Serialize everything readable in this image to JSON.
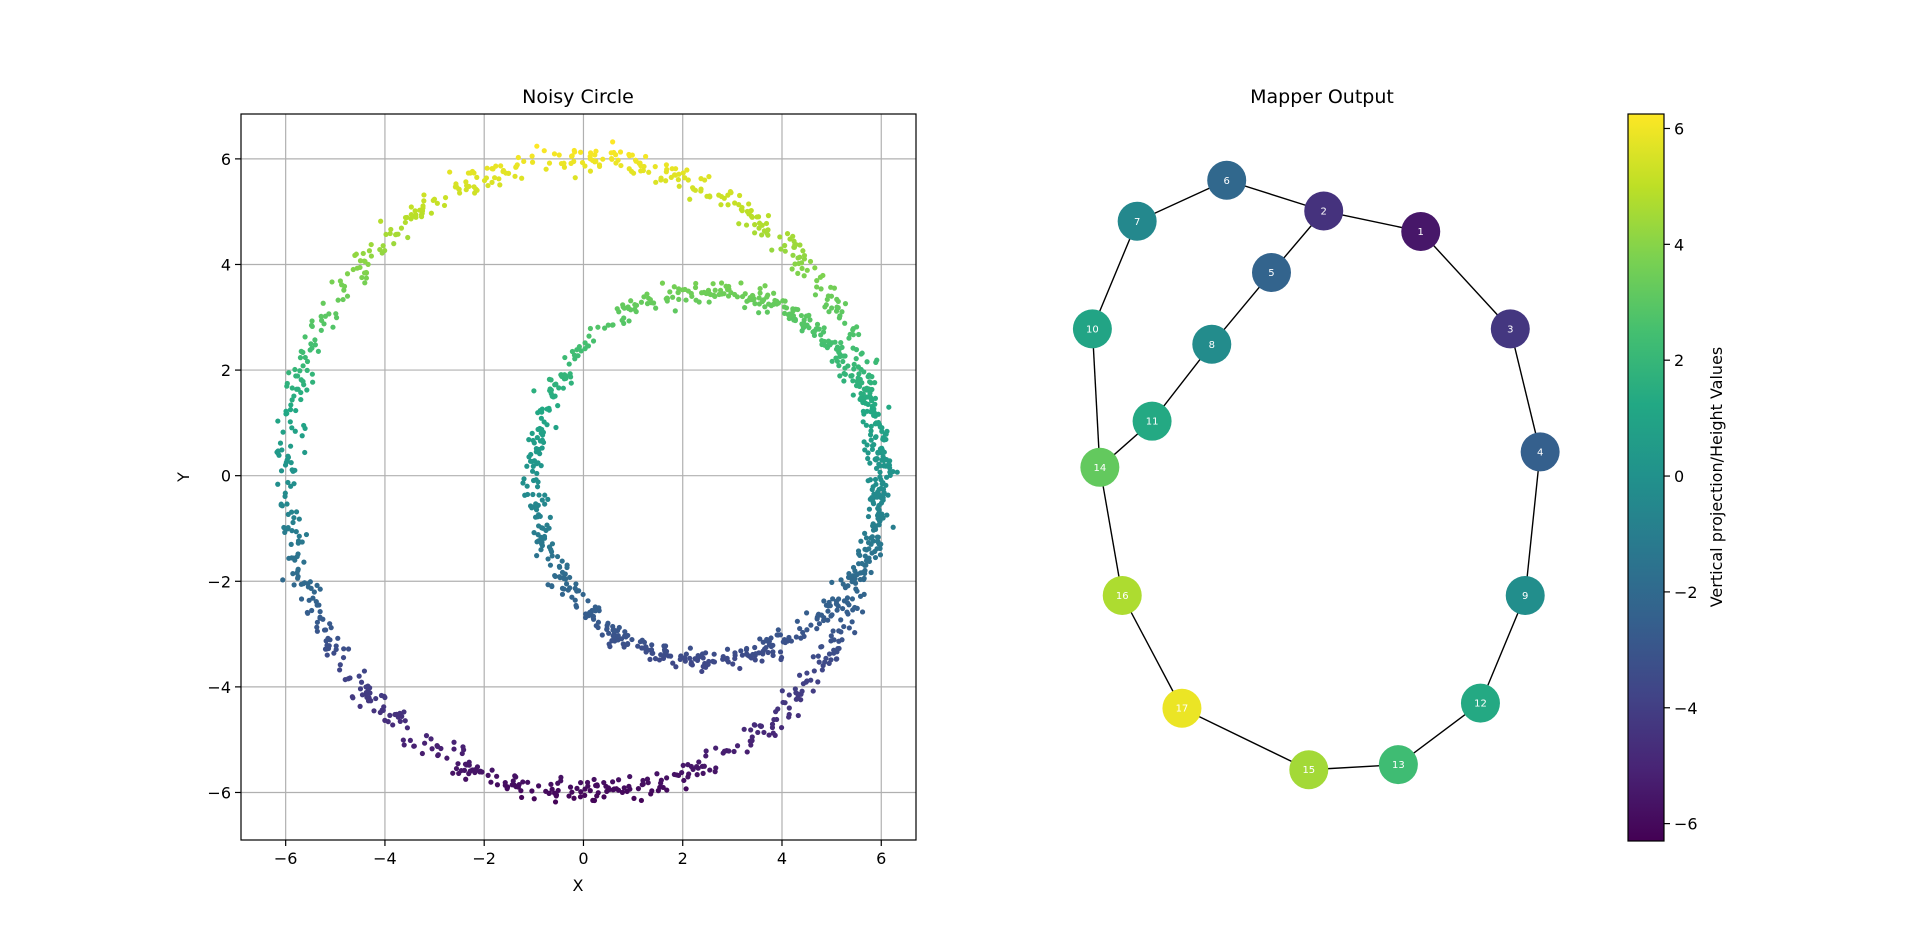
{
  "chart_data": [
    {
      "type": "scatter",
      "title": "Noisy Circle",
      "xlabel": "X",
      "ylabel": "Y",
      "xlim": [
        -6.9,
        6.7
      ],
      "ylim": [
        -6.9,
        6.85
      ],
      "xticks": [
        -6,
        -4,
        -2,
        0,
        2,
        4,
        6
      ],
      "yticks": [
        -6,
        -4,
        -2,
        0,
        2,
        4,
        6
      ],
      "grid": true,
      "colormap": "viridis",
      "color_by": "y",
      "series": [
        {
          "shape": "circle",
          "center": [
            0,
            0
          ],
          "radius": 6.0,
          "points": 900,
          "noise": 0.12
        },
        {
          "shape": "circle",
          "center": [
            2.5,
            0
          ],
          "radius": 3.5,
          "points": 700,
          "noise": 0.1
        }
      ]
    },
    {
      "type": "graph",
      "title": "Mapper Output",
      "colormap": "viridis",
      "colorbar_label": "Vertical projection/Height Values",
      "colorbar_range": [
        -6.3,
        6.25
      ],
      "colorbar_ticks": [
        -6,
        -4,
        -2,
        0,
        2,
        4,
        6
      ],
      "nodes": [
        {
          "id": "1",
          "x": 0.62,
          "y": 0.77,
          "value": -5.5
        },
        {
          "id": "2",
          "x": 0.49,
          "y": 0.81,
          "value": -4.5
        },
        {
          "id": "3",
          "x": 0.74,
          "y": 0.58,
          "value": -4.3
        },
        {
          "id": "4",
          "x": 0.78,
          "y": 0.34,
          "value": -2.5
        },
        {
          "id": "5",
          "x": 0.42,
          "y": 0.69,
          "value": -2.3
        },
        {
          "id": "6",
          "x": 0.36,
          "y": 0.87,
          "value": -2.1
        },
        {
          "id": "7",
          "x": 0.24,
          "y": 0.79,
          "value": -0.5
        },
        {
          "id": "8",
          "x": 0.34,
          "y": 0.55,
          "value": -0.3
        },
        {
          "id": "9",
          "x": 0.76,
          "y": 0.06,
          "value": -0.2
        },
        {
          "id": "10",
          "x": 0.18,
          "y": 0.58,
          "value": 1.0
        },
        {
          "id": "11",
          "x": 0.26,
          "y": 0.4,
          "value": 1.3
        },
        {
          "id": "12",
          "x": 0.7,
          "y": -0.15,
          "value": 1.3
        },
        {
          "id": "13",
          "x": 0.59,
          "y": -0.27,
          "value": 2.3
        },
        {
          "id": "14",
          "x": 0.19,
          "y": 0.31,
          "value": 3.2
        },
        {
          "id": "15",
          "x": 0.47,
          "y": -0.28,
          "value": 4.5
        },
        {
          "id": "16",
          "x": 0.22,
          "y": 0.06,
          "value": 4.7
        },
        {
          "id": "17",
          "x": 0.3,
          "y": -0.16,
          "value": 5.9
        }
      ],
      "edges": [
        [
          "6",
          "7"
        ],
        [
          "6",
          "2"
        ],
        [
          "2",
          "1"
        ],
        [
          "2",
          "5"
        ],
        [
          "7",
          "10"
        ],
        [
          "5",
          "8"
        ],
        [
          "8",
          "11"
        ],
        [
          "11",
          "14"
        ],
        [
          "10",
          "14"
        ],
        [
          "1",
          "3"
        ],
        [
          "3",
          "4"
        ],
        [
          "4",
          "9"
        ],
        [
          "9",
          "12"
        ],
        [
          "12",
          "13"
        ],
        [
          "13",
          "15"
        ],
        [
          "15",
          "17"
        ],
        [
          "17",
          "16"
        ],
        [
          "16",
          "14"
        ]
      ]
    }
  ]
}
